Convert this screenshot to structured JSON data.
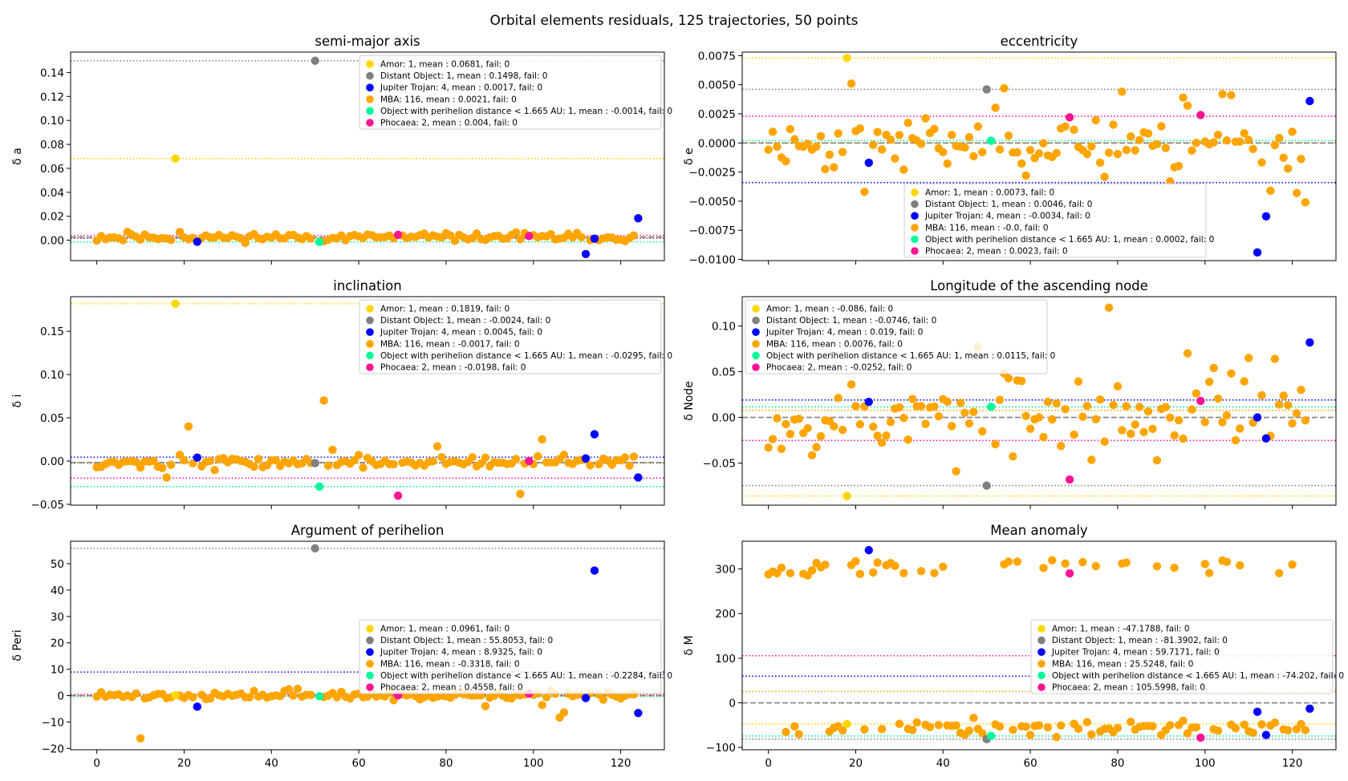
{
  "figure": {
    "title": "Orbital elements residuals, 125 trajectories, 50 points"
  },
  "colors": {
    "Amor": "#ffd700",
    "Distant Object": "#808080",
    "Jupiter Trojan": "#0000ff",
    "MBA": "#ffa500",
    "Object with perihelion distance < 1.665 AU": "#00fa9a",
    "Phocaea": "#ff1493"
  },
  "chart_data": [
    {
      "type": "scatter",
      "title": "semi-major axis",
      "ylabel": "δ a",
      "xlim": [
        -6,
        130
      ],
      "ylim": [
        -0.017,
        0.157
      ],
      "xticks": [
        0,
        20,
        40,
        60,
        80,
        100,
        120
      ],
      "yticks": [
        0.0,
        0.02,
        0.04,
        0.06,
        0.08,
        0.1,
        0.12,
        0.14
      ],
      "ytick_labels": [
        "0.00",
        "0.02",
        "0.04",
        "0.06",
        "0.08",
        "0.10",
        "0.12",
        "0.14"
      ],
      "legend_position": "upper right",
      "mba_seed": 11,
      "mba_spread": 0.0022,
      "mba_outliers": [
        [
          96,
          0.0065
        ],
        [
          7,
          0.007
        ],
        [
          19,
          0.007
        ]
      ],
      "overall_mean": 0.0025,
      "series": [
        {
          "group": "Amor",
          "legend": "Amor: 1, mean : 0.0681, fail: 0",
          "mean": 0.0681,
          "points": [
            [
              18,
              0.0681
            ]
          ]
        },
        {
          "group": "Distant Object",
          "legend": "Distant Object: 1, mean : 0.1498, fail: 0",
          "mean": 0.1498,
          "points": [
            [
              50,
              0.1498
            ]
          ]
        },
        {
          "group": "Jupiter Trojan",
          "legend": "Jupiter Trojan: 4, mean : 0.0017, fail: 0",
          "mean": 0.0017,
          "points": [
            [
              23,
              -0.0012
            ],
            [
              112,
              -0.0115
            ],
            [
              114,
              0.0013
            ],
            [
              124,
              0.0183
            ]
          ]
        },
        {
          "group": "MBA",
          "legend": "MBA: 116, mean : 0.0021, fail: 0",
          "mean": 0.0021,
          "points": []
        },
        {
          "group": "Object with perihelion distance < 1.665 AU",
          "legend": "Object with perihelion distance < 1.665 AU: 1, mean : -0.0014, fail: 0",
          "mean": -0.0014,
          "points": [
            [
              51,
              -0.0014
            ]
          ]
        },
        {
          "group": "Phocaea",
          "legend": "Phocaea: 2, mean : 0.004, fail: 0",
          "mean": 0.004,
          "points": [
            [
              69,
              0.0045
            ],
            [
              99,
              0.0035
            ]
          ]
        }
      ]
    },
    {
      "type": "scatter",
      "title": "eccentricity",
      "ylabel": "δ e",
      "xlim": [
        -6,
        130
      ],
      "ylim": [
        -0.0101,
        0.0078
      ],
      "xticks": [
        0,
        20,
        40,
        60,
        80,
        100,
        120
      ],
      "yticks": [
        -0.01,
        -0.0075,
        -0.005,
        -0.0025,
        0.0,
        0.0025,
        0.005,
        0.0075
      ],
      "ytick_labels": [
        "−0.0100",
        "−0.0075",
        "−0.0050",
        "−0.0025",
        "0.0000",
        "0.0025",
        "0.0050",
        "0.0075"
      ],
      "legend_position": "lower center",
      "mba_seed": 23,
      "mba_spread": 0.0016,
      "mba_outliers": [
        [
          19,
          0.0051
        ],
        [
          54,
          0.0047
        ],
        [
          81,
          0.0044
        ],
        [
          95,
          0.0039
        ],
        [
          104,
          0.0042
        ],
        [
          106,
          0.0041
        ],
        [
          96,
          0.0032
        ],
        [
          22,
          -0.0042
        ],
        [
          115,
          -0.0041
        ],
        [
          119,
          -0.0022
        ],
        [
          121,
          -0.0043
        ],
        [
          123,
          -0.0051
        ],
        [
          77,
          -0.0029
        ],
        [
          92,
          -0.0033
        ]
      ],
      "overall_mean": 0.0,
      "series": [
        {
          "group": "Amor",
          "legend": "Amor: 1, mean : 0.0073, fail: 0",
          "mean": 0.0073,
          "points": [
            [
              18,
              0.0073
            ]
          ]
        },
        {
          "group": "Distant Object",
          "legend": "Distant Object: 1, mean : 0.0046, fail: 0",
          "mean": 0.0046,
          "points": [
            [
              50,
              0.0046
            ]
          ]
        },
        {
          "group": "Jupiter Trojan",
          "legend": "Jupiter Trojan: 4, mean : -0.0034, fail: 0",
          "mean": -0.0034,
          "points": [
            [
              23,
              -0.0017
            ],
            [
              112,
              -0.0094
            ],
            [
              114,
              -0.0063
            ],
            [
              124,
              0.0036
            ]
          ]
        },
        {
          "group": "MBA",
          "legend": "MBA: 116, mean : -0.0, fail: 0",
          "mean": 0.0,
          "points": []
        },
        {
          "group": "Object with perihelion distance < 1.665 AU",
          "legend": "Object with perihelion distance < 1.665 AU: 1, mean : 0.0002, fail: 0",
          "mean": 0.0002,
          "points": [
            [
              51,
              0.0002
            ]
          ]
        },
        {
          "group": "Phocaea",
          "legend": "Phocaea: 2, mean : 0.0023, fail: 0",
          "mean": 0.0023,
          "points": [
            [
              69,
              0.0022
            ],
            [
              99,
              0.0024
            ]
          ]
        }
      ]
    },
    {
      "type": "scatter",
      "title": "inclination",
      "ylabel": "δ i",
      "xlim": [
        -6,
        130
      ],
      "ylim": [
        -0.051,
        0.19
      ],
      "xticks": [
        0,
        20,
        40,
        60,
        80,
        100,
        120
      ],
      "yticks": [
        -0.05,
        0.0,
        0.05,
        0.1,
        0.15
      ],
      "ytick_labels": [
        "−0.05",
        "0.00",
        "0.05",
        "0.10",
        "0.15"
      ],
      "legend_position": "upper right",
      "mba_seed": 37,
      "mba_spread": 0.005,
      "mba_outliers": [
        [
          21,
          0.04
        ],
        [
          52,
          0.07
        ],
        [
          54,
          0.013
        ],
        [
          97,
          -0.038
        ],
        [
          102,
          0.025
        ],
        [
          78,
          0.017
        ],
        [
          16,
          -0.019
        ]
      ],
      "overall_mean": -0.0017,
      "series": [
        {
          "group": "Amor",
          "legend": "Amor: 1, mean : 0.1819, fail: 0",
          "mean": 0.1819,
          "points": [
            [
              18,
              0.1819
            ]
          ]
        },
        {
          "group": "Distant Object",
          "legend": "Distant Object: 1, mean : -0.0024, fail: 0",
          "mean": -0.0024,
          "points": [
            [
              50,
              -0.0024
            ]
          ]
        },
        {
          "group": "Jupiter Trojan",
          "legend": "Jupiter Trojan: 4, mean : 0.0045, fail: 0",
          "mean": 0.0045,
          "points": [
            [
              23,
              0.004
            ],
            [
              112,
              0.003
            ],
            [
              114,
              0.031
            ],
            [
              124,
              -0.019
            ]
          ]
        },
        {
          "group": "MBA",
          "legend": "MBA: 116, mean : -0.0017, fail: 0",
          "mean": -0.0017,
          "points": []
        },
        {
          "group": "Object with perihelion distance < 1.665 AU",
          "legend": "Object with perihelion distance < 1.665 AU: 1, mean : -0.0295, fail: 0",
          "mean": -0.0295,
          "points": [
            [
              51,
              -0.0295
            ]
          ]
        },
        {
          "group": "Phocaea",
          "legend": "Phocaea: 2, mean : -0.0198, fail: 0",
          "mean": -0.0198,
          "points": [
            [
              69,
              -0.04
            ],
            [
              99,
              0.0
            ]
          ]
        }
      ]
    },
    {
      "type": "scatter",
      "title": "Longitude of the ascending node",
      "ylabel": "δ Node",
      "xlim": [
        -6,
        130
      ],
      "ylim": [
        -0.096,
        0.132
      ],
      "xticks": [
        0,
        20,
        40,
        60,
        80,
        100,
        120
      ],
      "yticks": [
        -0.05,
        0.0,
        0.05,
        0.1
      ],
      "ytick_labels": [
        "−0.05",
        "0.00",
        "0.05",
        "0.10"
      ],
      "legend_position": "upper left",
      "mba_seed": 53,
      "mba_spread": 0.03,
      "mba_outliers": [
        [
          78,
          0.12
        ],
        [
          48,
          0.077
        ],
        [
          54,
          0.048
        ],
        [
          96,
          0.07
        ],
        [
          110,
          0.065
        ],
        [
          116,
          0.064
        ],
        [
          43,
          -0.059
        ],
        [
          106,
          0.048
        ],
        [
          102,
          0.054
        ]
      ],
      "overall_mean": 0.0,
      "series": [
        {
          "group": "Amor",
          "legend": "Amor: 1, mean : -0.086, fail: 0",
          "mean": -0.086,
          "points": [
            [
              18,
              -0.086
            ]
          ]
        },
        {
          "group": "Distant Object",
          "legend": "Distant Object: 1, mean : -0.0746, fail: 0",
          "mean": -0.0746,
          "points": [
            [
              50,
              -0.0746
            ]
          ]
        },
        {
          "group": "Jupiter Trojan",
          "legend": "Jupiter Trojan: 4, mean : 0.019, fail: 0",
          "mean": 0.019,
          "points": [
            [
              23,
              0.017
            ],
            [
              112,
              0.0
            ],
            [
              114,
              -0.023
            ],
            [
              124,
              0.082
            ]
          ]
        },
        {
          "group": "MBA",
          "legend": "MBA: 116, mean : 0.0076, fail: 0",
          "mean": 0.0076,
          "points": []
        },
        {
          "group": "Object with perihelion distance < 1.665 AU",
          "legend": "Object with perihelion distance < 1.665 AU: 1, mean : 0.0115, fail: 0",
          "mean": 0.0115,
          "points": [
            [
              51,
              0.0115
            ]
          ]
        },
        {
          "group": "Phocaea",
          "legend": "Phocaea: 2, mean : -0.0252, fail: 0",
          "mean": -0.0252,
          "points": [
            [
              69,
              -0.068
            ],
            [
              99,
              0.018
            ]
          ]
        }
      ]
    },
    {
      "type": "scatter",
      "title": "Argument of perihelion",
      "ylabel": "δ Peri",
      "xlim": [
        -6,
        130
      ],
      "ylim": [
        -20.5,
        58.5
      ],
      "xticks": [
        0,
        20,
        40,
        60,
        80,
        100,
        120
      ],
      "yticks": [
        -20,
        -10,
        0,
        10,
        20,
        30,
        40,
        50
      ],
      "ytick_labels": [
        "−20",
        "−10",
        "0",
        "10",
        "20",
        "30",
        "40",
        "50"
      ],
      "legend_position": "center right",
      "mba_seed": 71,
      "mba_spread": 1.0,
      "mba_outliers": [
        [
          10,
          -16.2
        ],
        [
          106,
          -8.3
        ],
        [
          107,
          -6.4
        ],
        [
          102,
          -3.6
        ],
        [
          89,
          -4.0
        ],
        [
          44,
          2.4
        ],
        [
          46,
          2.6
        ],
        [
          104,
          2.0
        ]
      ],
      "overall_mean": 0.0,
      "series": [
        {
          "group": "Amor",
          "legend": "Amor: 1, mean : 0.0961, fail: 0",
          "mean": 0.0961,
          "points": [
            [
              18,
              0.0961
            ]
          ]
        },
        {
          "group": "Distant Object",
          "legend": "Distant Object: 1, mean : 55.8053, fail: 0",
          "mean": 55.8053,
          "points": [
            [
              50,
              55.8053
            ]
          ]
        },
        {
          "group": "Jupiter Trojan",
          "legend": "Jupiter Trojan: 4, mean : 8.9325, fail: 0",
          "mean": 8.9325,
          "points": [
            [
              23,
              -4.2
            ],
            [
              112,
              -0.9
            ],
            [
              114,
              47.4
            ],
            [
              124,
              -6.6
            ]
          ]
        },
        {
          "group": "MBA",
          "legend": "MBA: 116, mean : -0.3318, fail: 0",
          "mean": -0.3318,
          "points": []
        },
        {
          "group": "Object with perihelion distance < 1.665 AU",
          "legend": "Object with perihelion distance < 1.665 AU: 1, mean : -0.2284, fail: 0",
          "mean": -0.2284,
          "points": [
            [
              51,
              -0.2284
            ]
          ]
        },
        {
          "group": "Phocaea",
          "legend": "Phocaea: 2, mean : 0.4558, fail: 0",
          "mean": 0.4558,
          "points": [
            [
              69,
              0.1
            ],
            [
              99,
              0.8
            ]
          ]
        }
      ]
    },
    {
      "type": "scatter",
      "title": "Mean anomaly",
      "ylabel": "δ M",
      "xlim": [
        -6,
        130
      ],
      "ylim": [
        -105,
        362
      ],
      "xticks": [
        0,
        20,
        40,
        60,
        80,
        100,
        120
      ],
      "yticks": [
        -100,
        0,
        100,
        200,
        300
      ],
      "ytick_labels": [
        "−100",
        "0",
        "100",
        "200",
        "300"
      ],
      "legend_position": "center right",
      "mba_seed": 97,
      "mba_mode": "bimodal",
      "overall_mean": 0.0,
      "series": [
        {
          "group": "Amor",
          "legend": "Amor: 1, mean : -47.1788, fail: 0",
          "mean": -47.1788,
          "points": [
            [
              18,
              -47.18
            ]
          ]
        },
        {
          "group": "Distant Object",
          "legend": "Distant Object: 1, mean : -81.3902, fail: 0",
          "mean": -81.3902,
          "points": [
            [
              50,
              -81.39
            ]
          ]
        },
        {
          "group": "Jupiter Trojan",
          "legend": "Jupiter Trojan: 4, mean : 59.7171, fail: 0",
          "mean": 59.7171,
          "points": [
            [
              23,
              342
            ],
            [
              112,
              -20
            ],
            [
              114,
              -72
            ],
            [
              124,
              -13
            ]
          ]
        },
        {
          "group": "MBA",
          "legend": "MBA: 116, mean : 25.5248, fail: 0",
          "mean": 25.5248,
          "points": []
        },
        {
          "group": "Object with perihelion distance < 1.665 AU",
          "legend": "Object with perihelion distance < 1.665 AU: 1, mean : -74.202, fail: 0",
          "mean": -74.202,
          "points": [
            [
              51,
              -74.2
            ]
          ]
        },
        {
          "group": "Phocaea",
          "legend": "Phocaea: 2, mean : 105.5998, fail: 0",
          "mean": 105.5998,
          "points": [
            [
              69,
              290
            ],
            [
              99,
              -78
            ]
          ]
        }
      ]
    }
  ]
}
